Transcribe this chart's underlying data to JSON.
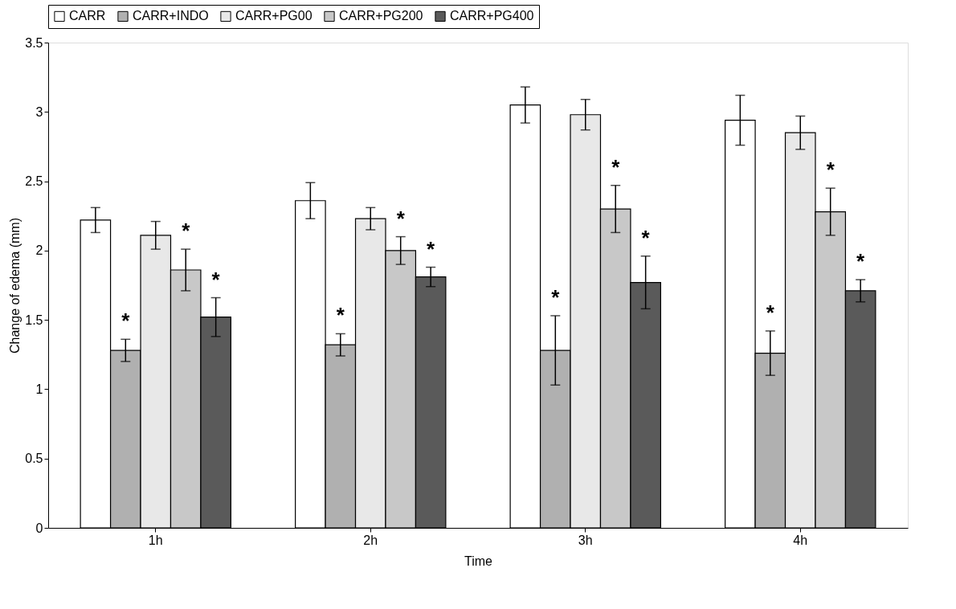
{
  "chart_data": {
    "type": "bar",
    "xlabel": "Time",
    "ylabel": "Change of edema (mm)",
    "categories": [
      "1h",
      "2h",
      "3h",
      "4h"
    ],
    "ylim": [
      0,
      3.5
    ],
    "yticks": [
      0,
      0.5,
      1,
      1.5,
      2,
      2.5,
      3,
      3.5
    ],
    "grid": false,
    "legend": "top",
    "series": [
      {
        "name": "CARR",
        "color": "#ffffff",
        "values": [
          2.22,
          2.36,
          3.05,
          2.94
        ],
        "errors": [
          0.09,
          0.13,
          0.13,
          0.18
        ]
      },
      {
        "name": "CARR+INDO",
        "color": "#b0b0b0",
        "values": [
          1.28,
          1.32,
          1.28,
          1.26
        ],
        "errors": [
          0.08,
          0.08,
          0.25,
          0.16
        ],
        "value_labels": [
          "*",
          "*",
          "*",
          "*"
        ]
      },
      {
        "name": "CARR+PG00",
        "color": "#e8e8e8",
        "values": [
          2.11,
          2.23,
          2.98,
          2.85
        ],
        "errors": [
          0.1,
          0.08,
          0.11,
          0.12
        ]
      },
      {
        "name": "CARR+PG200",
        "color": "#c8c8c8",
        "values": [
          1.86,
          2.0,
          2.3,
          2.28
        ],
        "errors": [
          0.15,
          0.1,
          0.17,
          0.17
        ],
        "value_labels": [
          "*",
          "*",
          "*",
          "*"
        ]
      },
      {
        "name": "CARR+PG400",
        "color": "#5a5a5a",
        "values": [
          1.52,
          1.81,
          1.77,
          1.71
        ],
        "errors": [
          0.14,
          0.07,
          0.19,
          0.08
        ],
        "value_labels": [
          "*",
          "*",
          "*",
          "*"
        ]
      }
    ]
  }
}
